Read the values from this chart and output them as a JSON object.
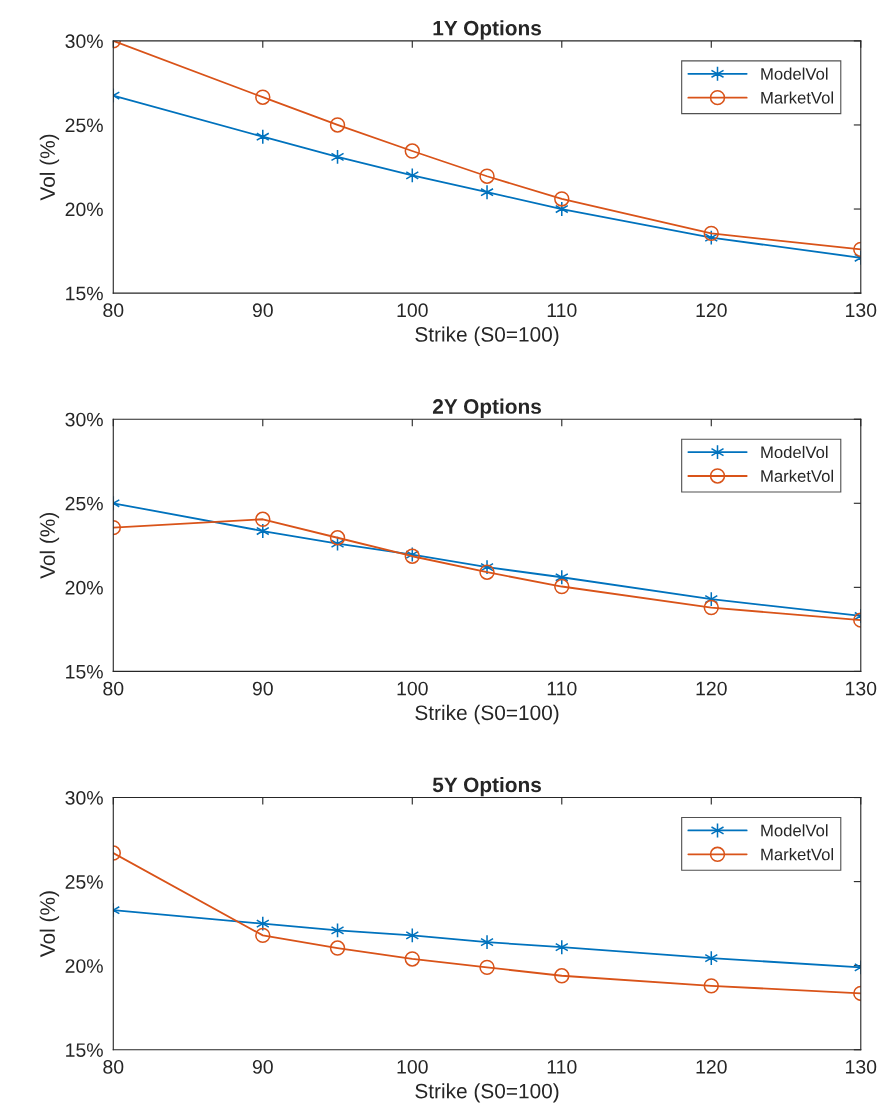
{
  "chart_data": [
    {
      "type": "line",
      "title": "1Y Options",
      "xlabel": "Strike (S0=100)",
      "ylabel": "Vol (%)",
      "xlim": [
        80,
        130
      ],
      "xticks": [
        80,
        90,
        100,
        110,
        120,
        130
      ],
      "ylim": [
        15,
        30
      ],
      "yticks": [
        {
          "value": 15,
          "label": "15%"
        },
        {
          "value": 20,
          "label": "20%"
        },
        {
          "value": 25,
          "label": "25%"
        },
        {
          "value": 30,
          "label": "30%"
        }
      ],
      "legend": "top right",
      "grid": false,
      "series": [
        {
          "name": "ModelVol",
          "color": "#0072bd",
          "marker": "cross",
          "x": [
            80,
            90,
            95,
            100,
            105,
            110,
            120,
            130
          ],
          "values": [
            26.75,
            24.3,
            23.1,
            22.0,
            21.0,
            20.0,
            18.3,
            17.1
          ]
        },
        {
          "name": "MarketVol",
          "color": "#d95319",
          "marker": "circle",
          "x": [
            80,
            90,
            95,
            100,
            105,
            110,
            120,
            130
          ],
          "values": [
            30.0,
            26.65,
            25.0,
            23.45,
            21.95,
            20.6,
            18.55,
            17.6
          ]
        }
      ]
    },
    {
      "type": "line",
      "title": "2Y Options",
      "xlabel": "Strike (S0=100)",
      "ylabel": "Vol (%)",
      "xlim": [
        80,
        130
      ],
      "xticks": [
        80,
        90,
        100,
        110,
        120,
        130
      ],
      "ylim": [
        15,
        30
      ],
      "yticks": [
        {
          "value": 15,
          "label": "15%"
        },
        {
          "value": 20,
          "label": "20%"
        },
        {
          "value": 25,
          "label": "25%"
        },
        {
          "value": 30,
          "label": "30%"
        }
      ],
      "legend": "top right",
      "grid": false,
      "series": [
        {
          "name": "ModelVol",
          "color": "#0072bd",
          "marker": "cross",
          "x": [
            80,
            90,
            95,
            100,
            105,
            110,
            120,
            130
          ],
          "values": [
            25.0,
            23.35,
            22.6,
            21.95,
            21.2,
            20.6,
            19.3,
            18.3
          ]
        },
        {
          "name": "MarketVol",
          "color": "#d95319",
          "marker": "circle",
          "x": [
            80,
            90,
            95,
            100,
            105,
            110,
            120,
            130
          ],
          "values": [
            23.55,
            24.05,
            22.95,
            21.85,
            20.9,
            20.05,
            18.8,
            18.05
          ]
        }
      ]
    },
    {
      "type": "line",
      "title": "5Y Options",
      "xlabel": "Strike (S0=100)",
      "ylabel": "Vol (%)",
      "xlim": [
        80,
        130
      ],
      "xticks": [
        80,
        90,
        100,
        110,
        120,
        130
      ],
      "ylim": [
        15,
        30
      ],
      "yticks": [
        {
          "value": 15,
          "label": "15%"
        },
        {
          "value": 20,
          "label": "20%"
        },
        {
          "value": 25,
          "label": "25%"
        },
        {
          "value": 30,
          "label": "30%"
        }
      ],
      "legend": "top right",
      "grid": false,
      "series": [
        {
          "name": "ModelVol",
          "color": "#0072bd",
          "marker": "cross",
          "x": [
            80,
            90,
            95,
            100,
            105,
            110,
            120,
            130
          ],
          "values": [
            23.3,
            22.5,
            22.1,
            21.8,
            21.4,
            21.1,
            20.45,
            19.9
          ]
        },
        {
          "name": "MarketVol",
          "color": "#d95319",
          "marker": "circle",
          "x": [
            80,
            90,
            95,
            100,
            105,
            110,
            120,
            130
          ],
          "values": [
            26.7,
            21.8,
            21.05,
            20.4,
            19.9,
            19.4,
            18.8,
            18.35
          ]
        }
      ]
    }
  ]
}
